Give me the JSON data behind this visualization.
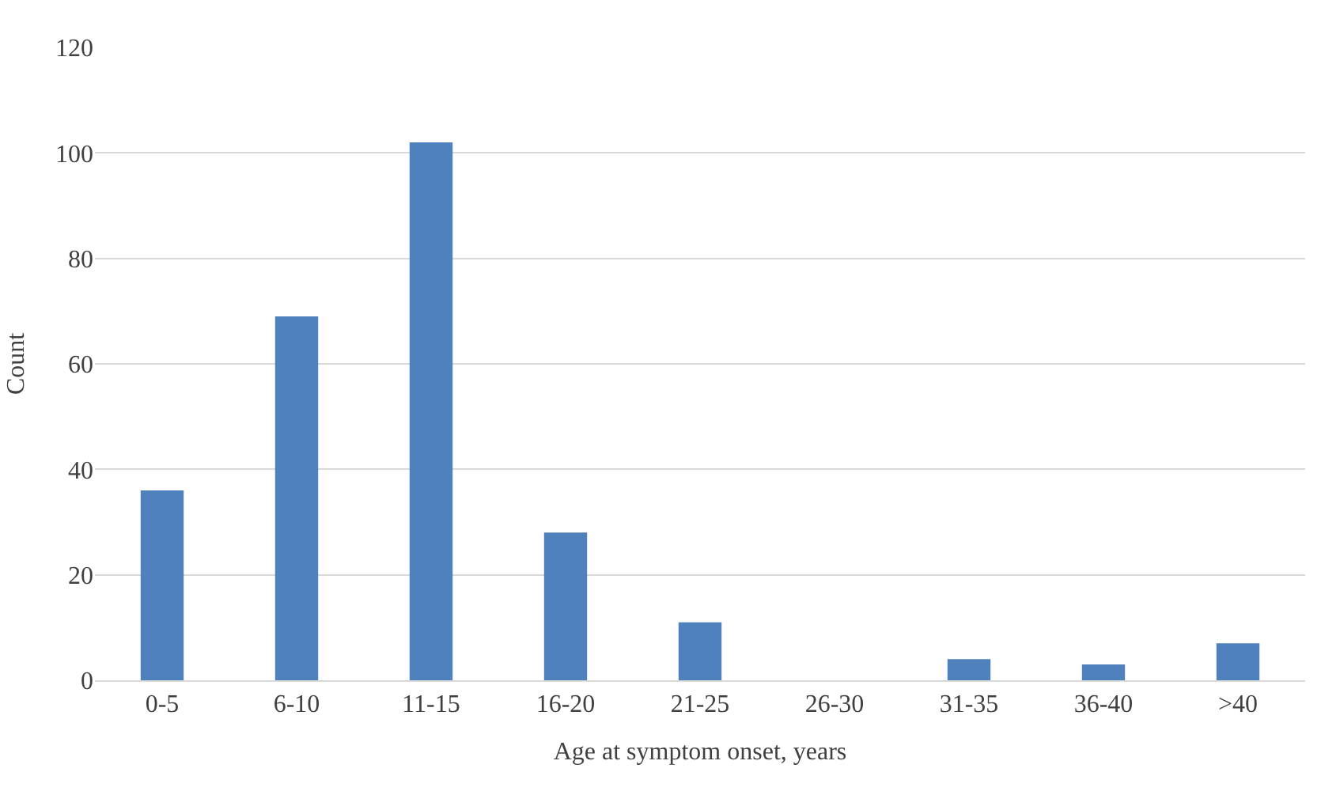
{
  "chart_data": {
    "type": "bar",
    "xlabel": "Age at symptom onset, years",
    "ylabel": "Count",
    "categories": [
      "0-5",
      "6-10",
      "11-15",
      "16-20",
      "21-25",
      "26-30",
      "31-35",
      "36-40",
      ">40"
    ],
    "values": [
      36,
      69,
      102,
      28,
      11,
      0,
      4,
      3,
      7
    ],
    "color": "#4f81bd",
    "ylim": [
      0,
      120
    ],
    "yticks": [
      0,
      20,
      40,
      60,
      80,
      100,
      120
    ],
    "grid": "y"
  }
}
